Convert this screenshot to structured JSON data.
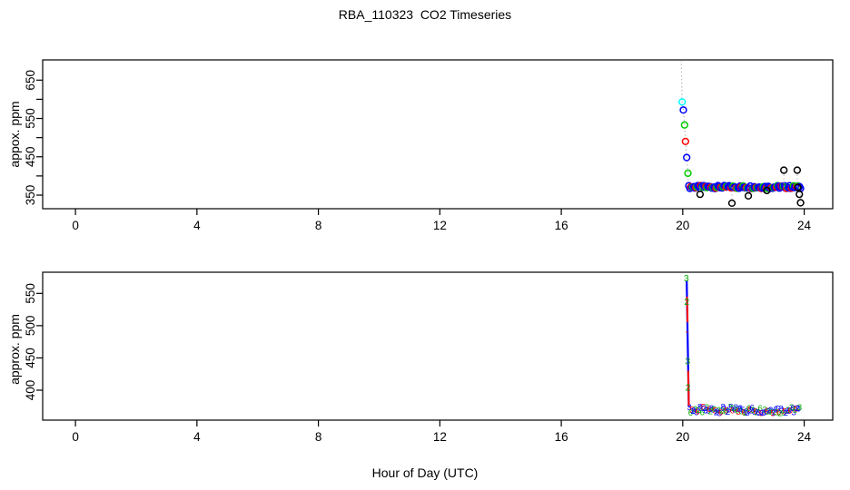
{
  "chart": {
    "title": "RBA_110323  CO2 Timeseries",
    "xlabel": "Hour of Day (UTC)"
  },
  "chart_data": [
    {
      "type": "scatter",
      "panel": "top",
      "ylabel": "appox. ppm",
      "xlim": [
        -1.08,
        24.94
      ],
      "ylim": [
        314.5,
        702.8
      ],
      "xticks": [
        0,
        4,
        8,
        12,
        16,
        20,
        24
      ],
      "yticks_minor": [
        350,
        400,
        450,
        500,
        550,
        600,
        650
      ],
      "yticks_labeled": [
        350,
        450,
        550,
        650
      ],
      "grid": false,
      "marker": "open-circle",
      "descent": {
        "line_color": "#b9b9b9",
        "line_style": "dotted",
        "start": {
          "x": 19.95,
          "y": 702
        },
        "points": [
          {
            "x": 19.98,
            "y": 593,
            "color": "#00ffff"
          },
          {
            "x": 20.02,
            "y": 572,
            "color": "#0000ff"
          },
          {
            "x": 20.06,
            "y": 533,
            "color": "#00cc00"
          },
          {
            "x": 20.09,
            "y": 490,
            "color": "#ff0000"
          },
          {
            "x": 20.13,
            "y": 448,
            "color": "#0000ff"
          },
          {
            "x": 20.17,
            "y": 407,
            "color": "#00cc00"
          }
        ]
      },
      "band": {
        "x_start": 20.2,
        "x_end": 23.88,
        "y": 371,
        "count": 112,
        "jitter_ppm": 4,
        "colors": [
          "#0000ff",
          "#0000ff",
          "#ff0000",
          "#0000ff",
          "#00cc00",
          "#0000ff",
          "#0000ff",
          "#ff0000",
          "#00cc00",
          "#0000ff"
        ]
      },
      "outliers": {
        "color": "#000000",
        "connector_color": "#b9b9b9",
        "points": [
          [
            20.57,
            352
          ],
          [
            21.62,
            329
          ],
          [
            22.16,
            348
          ],
          [
            22.77,
            362
          ],
          [
            23.33,
            415
          ],
          [
            23.77,
            415
          ],
          [
            23.79,
            370
          ],
          [
            23.84,
            352
          ],
          [
            23.88,
            330
          ]
        ]
      }
    },
    {
      "type": "scatter",
      "panel": "bottom",
      "ylabel": "approx. ppm",
      "xlim": [
        -1.08,
        24.94
      ],
      "ylim": [
        353.6,
        582.8
      ],
      "xticks": [
        0,
        4,
        8,
        12,
        16,
        20,
        24
      ],
      "yticks_minor": [
        400,
        450,
        500,
        550
      ],
      "yticks_labeled": [
        400,
        450,
        500,
        550
      ],
      "grid": false,
      "marker": "digit-text",
      "spike": {
        "color": "#0000ff",
        "from": {
          "x": 20.13,
          "y": 570
        },
        "to": {
          "x": 20.2,
          "y": 374
        },
        "red_segments": [
          {
            "x1": 20.14,
            "y1": 545,
            "x2": 20.16,
            "y2": 505
          },
          {
            "x1": 20.18,
            "y1": 430,
            "x2": 20.2,
            "y2": 376
          }
        ],
        "labels": [
          {
            "x": 20.12,
            "y": 574,
            "t": "3",
            "color": "#00aa00"
          },
          {
            "x": 20.13,
            "y": 537,
            "t": "2",
            "color": "#00aa00"
          },
          {
            "x": 20.14,
            "y": 491,
            "t": "-",
            "color": "#ff0000"
          },
          {
            "x": 20.16,
            "y": 445,
            "t": "3",
            "color": "#00aa00"
          },
          {
            "x": 20.17,
            "y": 404,
            "t": "2",
            "color": "#00aa00"
          }
        ]
      },
      "band": {
        "x_start": 20.22,
        "x_end": 23.85,
        "y": 369,
        "count": 96,
        "jitter_ppm": 5,
        "glyphs": [
          "3",
          "6",
          "5",
          "2",
          "6",
          "3",
          "5",
          "6",
          "2",
          "8"
        ],
        "colors": [
          "#0000ff",
          "#00aa00",
          "#ff0000",
          "#0000ff",
          "#0000ff",
          "#00aa00",
          "#0000ff",
          "#ff0000",
          "#00aa00",
          "#0000ff"
        ]
      }
    }
  ]
}
